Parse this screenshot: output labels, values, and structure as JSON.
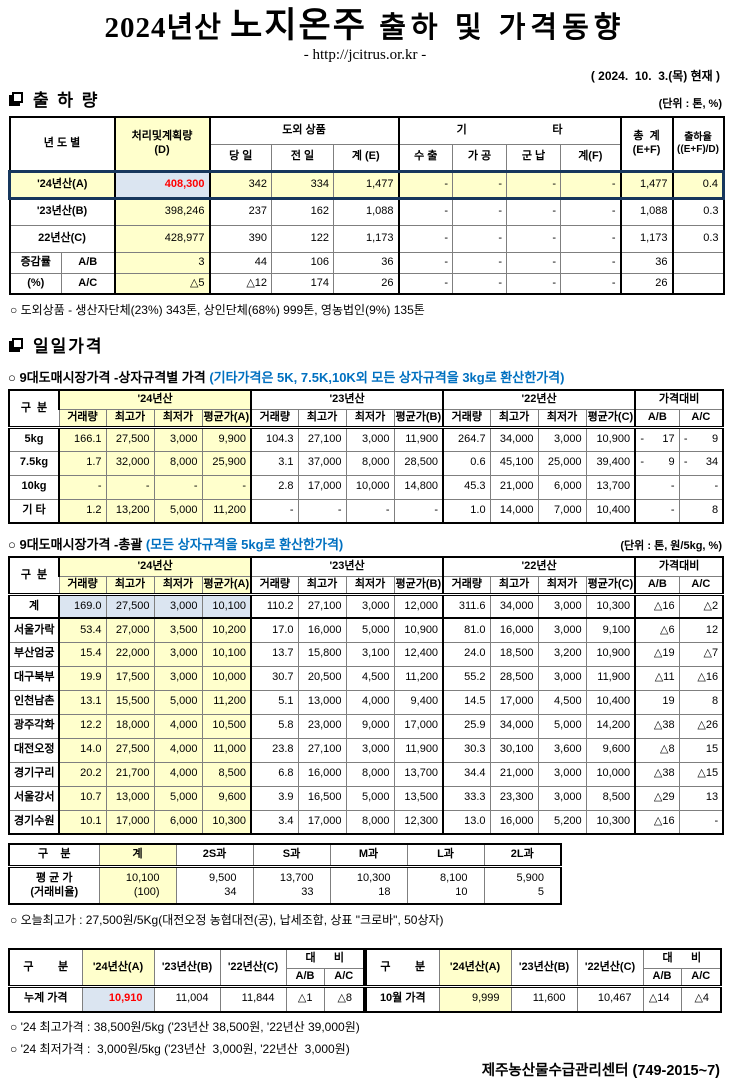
{
  "header": {
    "title": {
      "prefix": "2024년산 ",
      "product": "노지온주",
      "suffix": " 출하 및 가격동향"
    },
    "url_line": "- http://jcitrus.or.kr -",
    "asof_line": "( 2024.  10.  3.(목) 현재 )"
  },
  "icons": {
    "section_bullet": "shadowed-square"
  },
  "shipment": {
    "section_title": "출 하 량",
    "unit_label": "(단위 : 톤, %)",
    "grid": [
      {
        "c": "hd",
        "cells": [
          {
            "h": 1,
            "t": "년 도 별",
            "cs": 2,
            "rs": 2
          },
          {
            "h": 1,
            "t": "처리및계획량\n(D)",
            "rs": 2,
            "c": "y gl gr"
          },
          {
            "h": 1,
            "t": "도외 상품",
            "cs": 3
          },
          {
            "h": 1,
            "t": "기                            타",
            "cs": 4,
            "c": "gl"
          },
          {
            "h": 1,
            "t": "총  계\n(E+F)",
            "rs": 2,
            "c": "gl"
          },
          {
            "h": 1,
            "t": "출하율\n((E+F)/D)",
            "rs": 2,
            "c": "gl sm"
          }
        ]
      },
      {
        "c": "hd",
        "cells": [
          {
            "h": 1,
            "t": "당 일"
          },
          {
            "h": 1,
            "t": "전 일"
          },
          {
            "h": 1,
            "t": "계 (E)"
          },
          {
            "h": 1,
            "t": "수 출",
            "c": "gl"
          },
          {
            "h": 1,
            "t": "가 공"
          },
          {
            "h": 1,
            "t": "군 납"
          },
          {
            "h": 1,
            "t": "계(F)"
          }
        ]
      },
      {
        "c": "row24",
        "cells": [
          {
            "t": "'24년산(A)",
            "cs": 2,
            "c": "lab"
          },
          {
            "t": "408,300",
            "c": "bl red gl gr"
          },
          "342",
          "334",
          "1,477",
          {
            "t": "-",
            "c": "gl"
          },
          "-",
          "-",
          "-",
          {
            "t": "1,477",
            "c": "gl"
          },
          {
            "t": "0.4",
            "c": "gl"
          }
        ]
      },
      {
        "cells": [
          {
            "t": "'23년산(B)",
            "cs": 2,
            "c": "lab"
          },
          {
            "t": "398,246",
            "c": "y gl gr"
          },
          "237",
          "162",
          "1,088",
          {
            "t": "-",
            "c": "gl"
          },
          "-",
          "-",
          "-",
          {
            "t": "1,088",
            "c": "gl"
          },
          {
            "t": "0.3",
            "c": "gl"
          }
        ]
      },
      {
        "cells": [
          {
            "t": "22년산(C)",
            "cs": 2,
            "c": "lab"
          },
          {
            "t": "428,977",
            "c": "y gl gr"
          },
          "390",
          "122",
          "1,173",
          {
            "t": "-",
            "c": "gl"
          },
          "-",
          "-",
          "-",
          {
            "t": "1,173",
            "c": "gl"
          },
          {
            "t": "0.3",
            "c": "gl"
          }
        ]
      },
      {
        "c": "chg",
        "cells": [
          {
            "t": "증감률",
            "c": "lab"
          },
          {
            "t": "A/B",
            "c": "lab"
          },
          {
            "t": "3",
            "c": "y gl gr"
          },
          "44",
          "106",
          "36",
          {
            "t": "-",
            "c": "gl"
          },
          "-",
          "-",
          "-",
          {
            "t": "36",
            "c": "gl"
          },
          {
            "t": "",
            "c": "gl"
          }
        ]
      },
      {
        "c": "chg",
        "cells": [
          {
            "t": "(%)",
            "c": "lab"
          },
          {
            "t": "A/C",
            "c": "lab"
          },
          {
            "t": "△5",
            "c": "y gl gr"
          },
          "△12",
          "174",
          "26",
          {
            "t": "-",
            "c": "gl"
          },
          "-",
          "-",
          "-",
          {
            "t": "26",
            "c": "gl"
          },
          {
            "t": "",
            "c": "gl"
          }
        ]
      }
    ],
    "note": "○ 도외상품 - 생산자단체(23%) 343톤, 상인단체(68%) 999톤, 영농법인(9%) 135톤"
  },
  "daily_price": {
    "section_title": "일일가격",
    "box_table": {
      "subtitle": "○ 9대도매시장가격 -상자규격별 가격 ",
      "subtitle_note": "(기타가격은 5K, 7.5K,10K외 모든 상자규격을 3kg로 환산한가격)",
      "grid": [
        {
          "c": "hd1",
          "cells": [
            {
              "h": 1,
              "t": "구  분",
              "rs": 2
            },
            {
              "h": 1,
              "t": "'24년산",
              "cs": 4,
              "c": "y"
            },
            {
              "h": 1,
              "t": "'23년산",
              "cs": 4
            },
            {
              "h": 1,
              "t": "'22년산",
              "cs": 4
            },
            {
              "h": 1,
              "t": "가격대비",
              "cs": 2
            }
          ]
        },
        {
          "c": "hd2",
          "cells": [
            {
              "h": 1,
              "t": "거래량"
            },
            {
              "h": 1,
              "t": "최고가"
            },
            {
              "h": 1,
              "t": "최저가"
            },
            {
              "h": 1,
              "t": "평균가(A)"
            },
            {
              "h": 1,
              "t": "거래량"
            },
            {
              "h": 1,
              "t": "최고가"
            },
            {
              "h": 1,
              "t": "최저가"
            },
            {
              "h": 1,
              "t": "평균가(B)"
            },
            {
              "h": 1,
              "t": "거래량"
            },
            {
              "h": 1,
              "t": "최고가"
            },
            {
              "h": 1,
              "t": "최저가"
            },
            {
              "h": 1,
              "t": "평균가(C)"
            },
            {
              "h": 1,
              "t": "A/B"
            },
            {
              "h": 1,
              "t": "A/C"
            }
          ]
        },
        [
          "5kg",
          "166.1",
          "27,500",
          "3,000",
          "9,900",
          "104.3",
          "27,100",
          "3,000",
          "11,900",
          "264.7",
          "34,000",
          "3,000",
          "10,900",
          "-      17",
          "-        9"
        ],
        [
          "7.5kg",
          "1.7",
          "32,000",
          "8,000",
          "25,900",
          "3.1",
          "37,000",
          "8,000",
          "28,500",
          "0.6",
          "45,100",
          "25,000",
          "39,400",
          "-        9",
          "-      34"
        ],
        [
          "10kg",
          "-",
          "-",
          "-",
          "-",
          "2.8",
          "17,000",
          "10,000",
          "14,800",
          "45.3",
          "21,000",
          "6,000",
          "13,700",
          "-",
          "-"
        ],
        [
          "기 타",
          "1.2",
          "13,200",
          "5,000",
          "11,200",
          "-",
          "-",
          "-",
          "-",
          "1.0",
          "14,000",
          "7,000",
          "10,400",
          "-",
          "8"
        ]
      ]
    },
    "total_table": {
      "subtitle": "○ 9대도매시장가격 -총괄 ",
      "subtitle_note": "(모든 상자규격을 5kg로 환산한가격)",
      "unit_label": "(단위 : 톤, 원/5kg, %)",
      "grid": [
        {
          "c": "hd1",
          "cells": [
            {
              "h": 1,
              "t": "구  분",
              "rs": 2
            },
            {
              "h": 1,
              "t": "'24년산",
              "cs": 4,
              "c": "y"
            },
            {
              "h": 1,
              "t": "'23년산",
              "cs": 4
            },
            {
              "h": 1,
              "t": "'22년산",
              "cs": 4
            },
            {
              "h": 1,
              "t": "가격대비",
              "cs": 2
            }
          ]
        },
        {
          "c": "hd2",
          "cells": [
            {
              "h": 1,
              "t": "거래량"
            },
            {
              "h": 1,
              "t": "최고가"
            },
            {
              "h": 1,
              "t": "최저가"
            },
            {
              "h": 1,
              "t": "평균가(A)"
            },
            {
              "h": 1,
              "t": "거래량"
            },
            {
              "h": 1,
              "t": "최고가"
            },
            {
              "h": 1,
              "t": "최저가"
            },
            {
              "h": 1,
              "t": "평균가(B)"
            },
            {
              "h": 1,
              "t": "거래량"
            },
            {
              "h": 1,
              "t": "최고가"
            },
            {
              "h": 1,
              "t": "최저가"
            },
            {
              "h": 1,
              "t": "평균가(C)"
            },
            {
              "h": 1,
              "t": "A/B"
            },
            {
              "h": 1,
              "t": "A/C"
            }
          ]
        },
        {
          "c": "sum",
          "cells": [
            "계",
            "169.0",
            "27,500",
            "3,000",
            "10,100",
            "110.2",
            "27,100",
            "3,000",
            "12,000",
            "311.6",
            "34,000",
            "3,000",
            "10,300",
            "△16",
            "△2"
          ]
        },
        [
          "서울가락",
          "53.4",
          "27,000",
          "3,500",
          "10,200",
          "17.0",
          "16,000",
          "5,000",
          "10,900",
          "81.0",
          "16,000",
          "3,000",
          "9,100",
          "△6",
          "12"
        ],
        [
          "부산엄궁",
          "15.4",
          "22,000",
          "3,000",
          "10,100",
          "13.7",
          "15,800",
          "3,100",
          "12,400",
          "24.0",
          "18,500",
          "3,200",
          "10,900",
          "△19",
          "△7"
        ],
        [
          "대구북부",
          "19.9",
          "17,500",
          "3,000",
          "10,000",
          "30.7",
          "20,500",
          "4,500",
          "11,200",
          "55.2",
          "28,500",
          "3,000",
          "11,900",
          "△11",
          "△16"
        ],
        [
          "인천남촌",
          "13.1",
          "15,500",
          "5,000",
          "11,200",
          "5.1",
          "13,000",
          "4,000",
          "9,400",
          "14.5",
          "17,000",
          "4,500",
          "10,400",
          "19",
          "8"
        ],
        [
          "광주각화",
          "12.2",
          "18,000",
          "4,000",
          "10,500",
          "5.8",
          "23,000",
          "9,000",
          "17,000",
          "25.9",
          "34,000",
          "5,000",
          "14,200",
          "△38",
          "△26"
        ],
        [
          "대전오정",
          "14.0",
          "27,500",
          "4,000",
          "11,000",
          "23.8",
          "27,100",
          "3,000",
          "11,900",
          "30.3",
          "30,100",
          "3,600",
          "9,600",
          "△8",
          "15"
        ],
        [
          "경기구리",
          "20.2",
          "21,700",
          "4,000",
          "8,500",
          "6.8",
          "16,000",
          "8,000",
          "13,700",
          "34.4",
          "21,000",
          "3,000",
          "10,000",
          "△38",
          "△15"
        ],
        [
          "서울강서",
          "10.7",
          "13,000",
          "5,000",
          "9,600",
          "3.9",
          "16,500",
          "5,000",
          "13,500",
          "33.3",
          "23,300",
          "3,000",
          "8,500",
          "△29",
          "13"
        ],
        [
          "경기수원",
          "10.1",
          "17,000",
          "6,000",
          "10,300",
          "3.4",
          "17,000",
          "8,000",
          "12,300",
          "13.0",
          "16,000",
          "5,200",
          "10,300",
          "△16",
          "-"
        ]
      ]
    },
    "grade_table": {
      "grid": [
        {
          "c": "hd",
          "cells": [
            {
              "h": 1,
              "t": "구    분"
            },
            {
              "h": 1,
              "t": "계",
              "c": "y"
            },
            {
              "h": 1,
              "t": "2S과"
            },
            {
              "h": 1,
              "t": "S과"
            },
            {
              "h": 1,
              "t": "M과"
            },
            {
              "h": 1,
              "t": "L과"
            },
            {
              "h": 1,
              "t": "2L과"
            }
          ]
        },
        {
          "cells": [
            {
              "t": "평 균 가\n(거래비율)",
              "c": "lab"
            },
            {
              "t": "10,100\n(100)",
              "c": "y"
            },
            "9,500\n34",
            "13,700\n33",
            "10,300\n18",
            "8,100\n10",
            "5,900\n5"
          ]
        }
      ]
    },
    "today_high_note": "○ 오늘최고가 : 27,500원/5Kg(대전오정 농협대전(공), 납세조합, 상표 \"크로바\", 50상자)"
  },
  "summary": {
    "cumulative_table": {
      "grid": [
        {
          "c": "hd1",
          "cells": [
            {
              "h": 1,
              "t": "구        분",
              "rs": 2
            },
            {
              "h": 1,
              "t": "'24년산(A)",
              "rs": 2,
              "c": "y"
            },
            {
              "h": 1,
              "t": "'23년산(B)",
              "rs": 2
            },
            {
              "h": 1,
              "t": "'22년산(C)",
              "rs": 2
            },
            {
              "h": 1,
              "t": "대      비",
              "cs": 2
            }
          ]
        },
        {
          "c": "hd2",
          "cells": [
            {
              "h": 1,
              "t": "A/B"
            },
            {
              "h": 1,
              "t": "A/C"
            }
          ]
        },
        {
          "cells": [
            {
              "t": "누계 가격",
              "c": "lab"
            },
            {
              "t": "10,910",
              "c": "bl red"
            },
            "11,004",
            "11,844",
            "△1",
            "△8"
          ]
        }
      ]
    },
    "month_table": {
      "grid": [
        {
          "c": "hd1",
          "cells": [
            {
              "h": 1,
              "t": "구        분",
              "rs": 2
            },
            {
              "h": 1,
              "t": "'24년산(A)",
              "rs": 2,
              "c": "y"
            },
            {
              "h": 1,
              "t": "'23년산(B)",
              "rs": 2
            },
            {
              "h": 1,
              "t": "'22년산(C)",
              "rs": 2
            },
            {
              "h": 1,
              "t": "대      비",
              "cs": 2
            }
          ]
        },
        {
          "c": "hd2",
          "cells": [
            {
              "h": 1,
              "t": "A/B"
            },
            {
              "h": 1,
              "t": "A/C"
            }
          ]
        },
        {
          "cells": [
            {
              "t": "10월 가격",
              "c": "lab"
            },
            {
              "t": "9,999",
              "c": "y"
            },
            "11,600",
            "10,467",
            "△14",
            "△4"
          ]
        }
      ]
    },
    "high_note": "○ '24 최고가격 : 38,500원/5kg ('23년산 38,500원, '22년산 39,000원)",
    "low_note": "○ '24 최저가격 :  3,000원/5kg ('23년산  3,000원, '22년산  3,000원)",
    "org": "제주농산물수급관리센터 (749-2015~7)"
  }
}
